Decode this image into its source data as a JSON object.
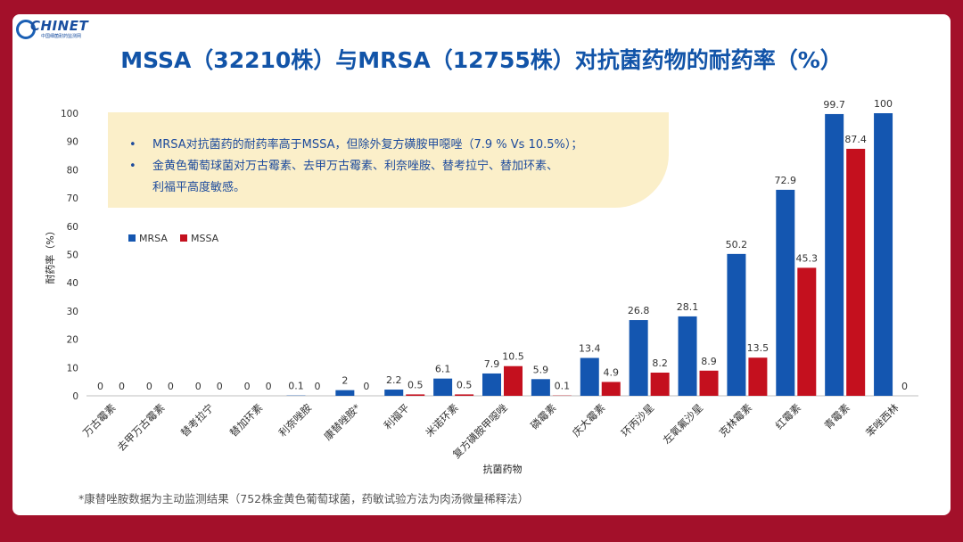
{
  "title": "MSSA（32210株）与MRSA（12755株）对抗菌药物的耐药率（%）",
  "logo": {
    "text": "CHINET",
    "sub": "中国细菌耐药监测网"
  },
  "notes": [
    "MRSA对抗菌药的耐药率高于MSSA，但除外复方磺胺甲噁唑（7.9 % Vs 10.5%）；",
    "金黄色葡萄球菌对万古霉素、去甲万古霉素、利奈唑胺、替考拉宁、替加环素、",
    "利福平高度敏感。"
  ],
  "bullet_char": "•",
  "footnote": "*康替唑胺数据为主动监测结果（752株金黄色葡萄球菌，药敏试验方法为肉汤微量稀释法）",
  "colors": {
    "mrsa": "#1456b0",
    "mssa": "#c4101e"
  },
  "chart_data": {
    "type": "bar",
    "xlabel": "抗菌药物",
    "ylabel": "耐药率（%）",
    "ylim": [
      0,
      100
    ],
    "yticks": [
      0,
      10,
      20,
      30,
      40,
      50,
      60,
      70,
      80,
      90,
      100
    ],
    "legend_position": "top-left",
    "categories": [
      "万古霉素",
      "去甲万古霉素",
      "替考拉宁",
      "替加环素",
      "利奈唑胺",
      "康替唑胺*",
      "利福平",
      "米诺环素",
      "复方磺胺甲噁唑",
      "磷霉素",
      "庆大霉素",
      "环丙沙星",
      "左氧氟沙星",
      "克林霉素",
      "红霉素",
      "青霉素",
      "苯唑西林"
    ],
    "series": [
      {
        "name": "MRSA",
        "values": [
          0,
          0,
          0,
          0,
          0.1,
          2,
          2.2,
          6.1,
          7.9,
          5.9,
          13.4,
          26.8,
          28.1,
          50.2,
          72.9,
          99.7,
          100
        ]
      },
      {
        "name": "MSSA",
        "values": [
          0,
          0,
          0,
          0,
          0,
          0,
          0.5,
          0.5,
          10.5,
          0.1,
          4.9,
          8.2,
          8.9,
          13.5,
          45.3,
          87.4,
          0
        ]
      }
    ]
  }
}
